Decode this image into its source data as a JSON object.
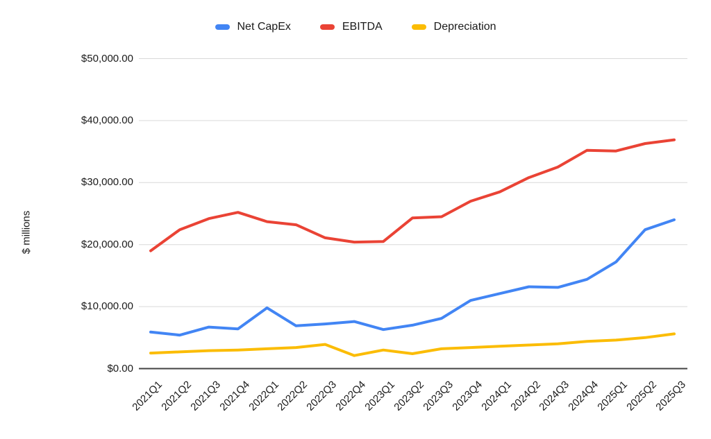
{
  "chart_data": {
    "type": "line",
    "title": "",
    "xlabel": "",
    "ylabel": "$ millions",
    "legend_position": "top",
    "grid": true,
    "x_tick_rotation": -45,
    "categories": [
      "2021Q1",
      "2021Q2",
      "2021Q3",
      "2021Q4",
      "2022Q1",
      "2022Q2",
      "2022Q3",
      "2022Q4",
      "2023Q1",
      "2023Q2",
      "2023Q3",
      "2023Q4",
      "2024Q1",
      "2024Q2",
      "2024Q3",
      "2024Q4",
      "2025Q1",
      "2025Q2",
      "2025Q3"
    ],
    "series": [
      {
        "name": "Net CapEx",
        "color": "#4285F4",
        "values": [
          5900,
          5400,
          6700,
          6400,
          9800,
          6900,
          7200,
          7600,
          6300,
          7000,
          8100,
          11000,
          12100,
          13200,
          13100,
          14400,
          17200,
          22400,
          24000
        ]
      },
      {
        "name": "EBITDA",
        "color": "#EA4335",
        "values": [
          19000,
          22400,
          24200,
          25200,
          23700,
          23200,
          21100,
          20400,
          20500,
          24300,
          24500,
          27000,
          28500,
          30800,
          32500,
          35200,
          35100,
          36300,
          36900
        ]
      },
      {
        "name": "Depreciation",
        "color": "#FBBC04",
        "values": [
          2500,
          2700,
          2900,
          3000,
          3200,
          3400,
          3900,
          2100,
          3000,
          2400,
          3200,
          3400,
          3600,
          3800,
          4000,
          4400,
          4600,
          5000,
          5600
        ]
      }
    ],
    "y_axis": {
      "range": [
        0,
        50000
      ],
      "ticks": [
        {
          "value": 0,
          "label": "$0.00"
        },
        {
          "value": 10000,
          "label": "$10,000.00"
        },
        {
          "value": 20000,
          "label": "$20,000.00"
        },
        {
          "value": 30000,
          "label": "$30,000.00"
        },
        {
          "value": 40000,
          "label": "$40,000.00"
        },
        {
          "value": 50000,
          "label": "$50,000.00"
        }
      ]
    },
    "colors": {
      "gridline": "#d9d9d9",
      "axis_line": "#424242",
      "text": "#1a1a1a"
    }
  }
}
